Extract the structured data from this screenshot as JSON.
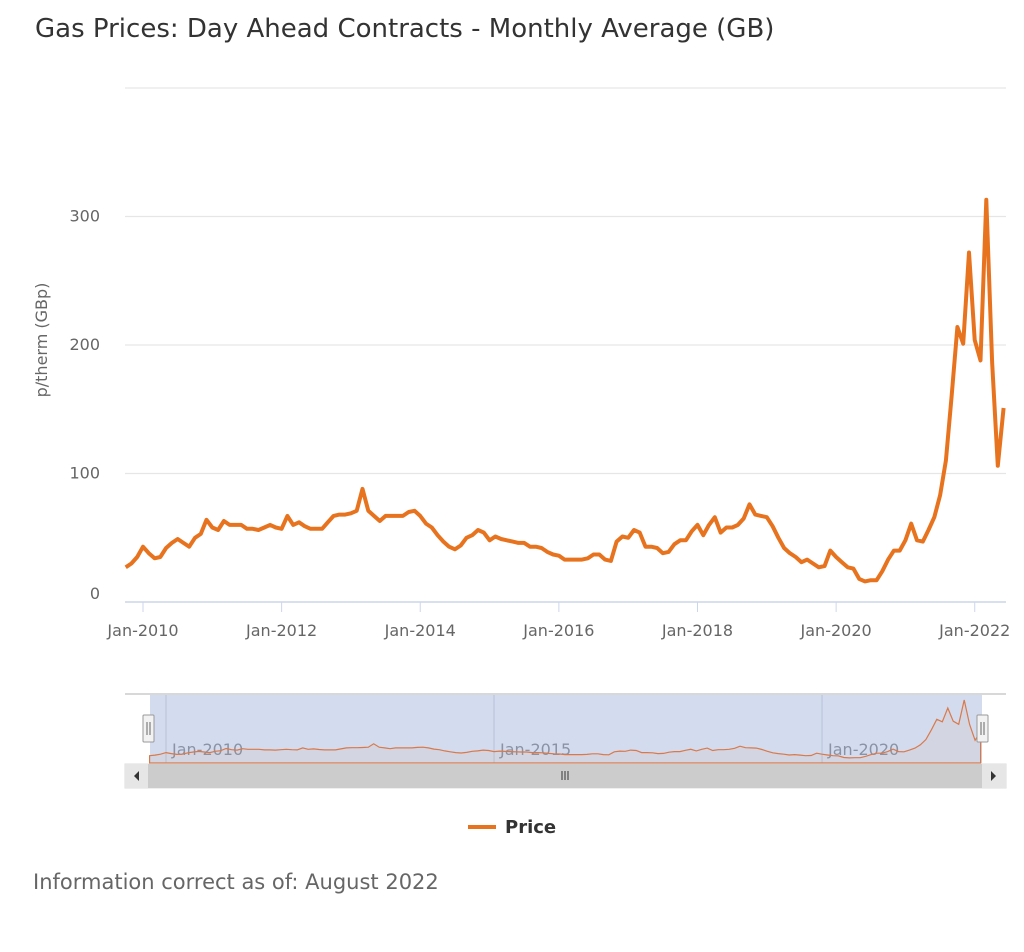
{
  "chart_data": {
    "type": "line",
    "title": "Gas Prices: Day Ahead Contracts - Monthly Average (GB)",
    "xlabel": "",
    "ylabel": "p/therm (GBp)",
    "ylim": [
      0,
      400
    ],
    "yticks": [
      0,
      100,
      200,
      300
    ],
    "grid": true,
    "x_start": "2009-10",
    "x_frequency": "monthly",
    "xtick_labels": [
      "Jan-2010",
      "Jan-2012",
      "Jan-2014",
      "Jan-2016",
      "Jan-2018",
      "Jan-2020",
      "Jan-2022"
    ],
    "navigator_labels": [
      "Jan-2010",
      "Jan-2015",
      "Jan-2020"
    ],
    "legend": {
      "position": "bottom-center",
      "entries": [
        "Price"
      ]
    },
    "series": [
      {
        "name": "Price",
        "color": "#e8731f",
        "values": [
          27,
          30,
          35,
          43,
          38,
          34,
          35,
          42,
          46,
          49,
          46,
          43,
          50,
          53,
          64,
          58,
          56,
          63,
          60,
          60,
          60,
          57,
          57,
          56,
          58,
          60,
          58,
          57,
          67,
          60,
          62,
          59,
          57,
          57,
          57,
          62,
          67,
          68,
          68,
          69,
          71,
          88,
          71,
          67,
          63,
          67,
          67,
          67,
          67,
          70,
          71,
          67,
          61,
          58,
          52,
          47,
          43,
          41,
          44,
          50,
          52,
          56,
          54,
          48,
          51,
          49,
          48,
          47,
          46,
          46,
          43,
          43,
          42,
          39,
          37,
          36,
          33,
          33,
          33,
          33,
          34,
          37,
          37,
          33,
          32,
          47,
          51,
          50,
          56,
          54,
          43,
          43,
          42,
          38,
          39,
          45,
          48,
          48,
          55,
          60,
          52,
          60,
          66,
          54,
          58,
          58,
          60,
          65,
          76,
          68,
          67,
          66,
          59,
          50,
          42,
          38,
          35,
          31,
          33,
          30,
          27,
          28,
          40,
          35,
          31,
          27,
          26,
          18,
          16,
          17,
          17,
          24,
          33,
          40,
          40,
          48,
          61,
          48,
          47,
          56,
          66,
          83,
          110,
          160,
          214,
          201,
          272,
          204,
          188,
          313,
          187,
          106,
          151
        ]
      }
    ]
  },
  "footer": "Information correct as of: August 2022",
  "colors": {
    "line": "#e8731f",
    "grid": "#e6e6e6",
    "axis": "#ccd6eb",
    "navigator_mask": "#d3dbee",
    "scrollbar": "#cccccc"
  }
}
